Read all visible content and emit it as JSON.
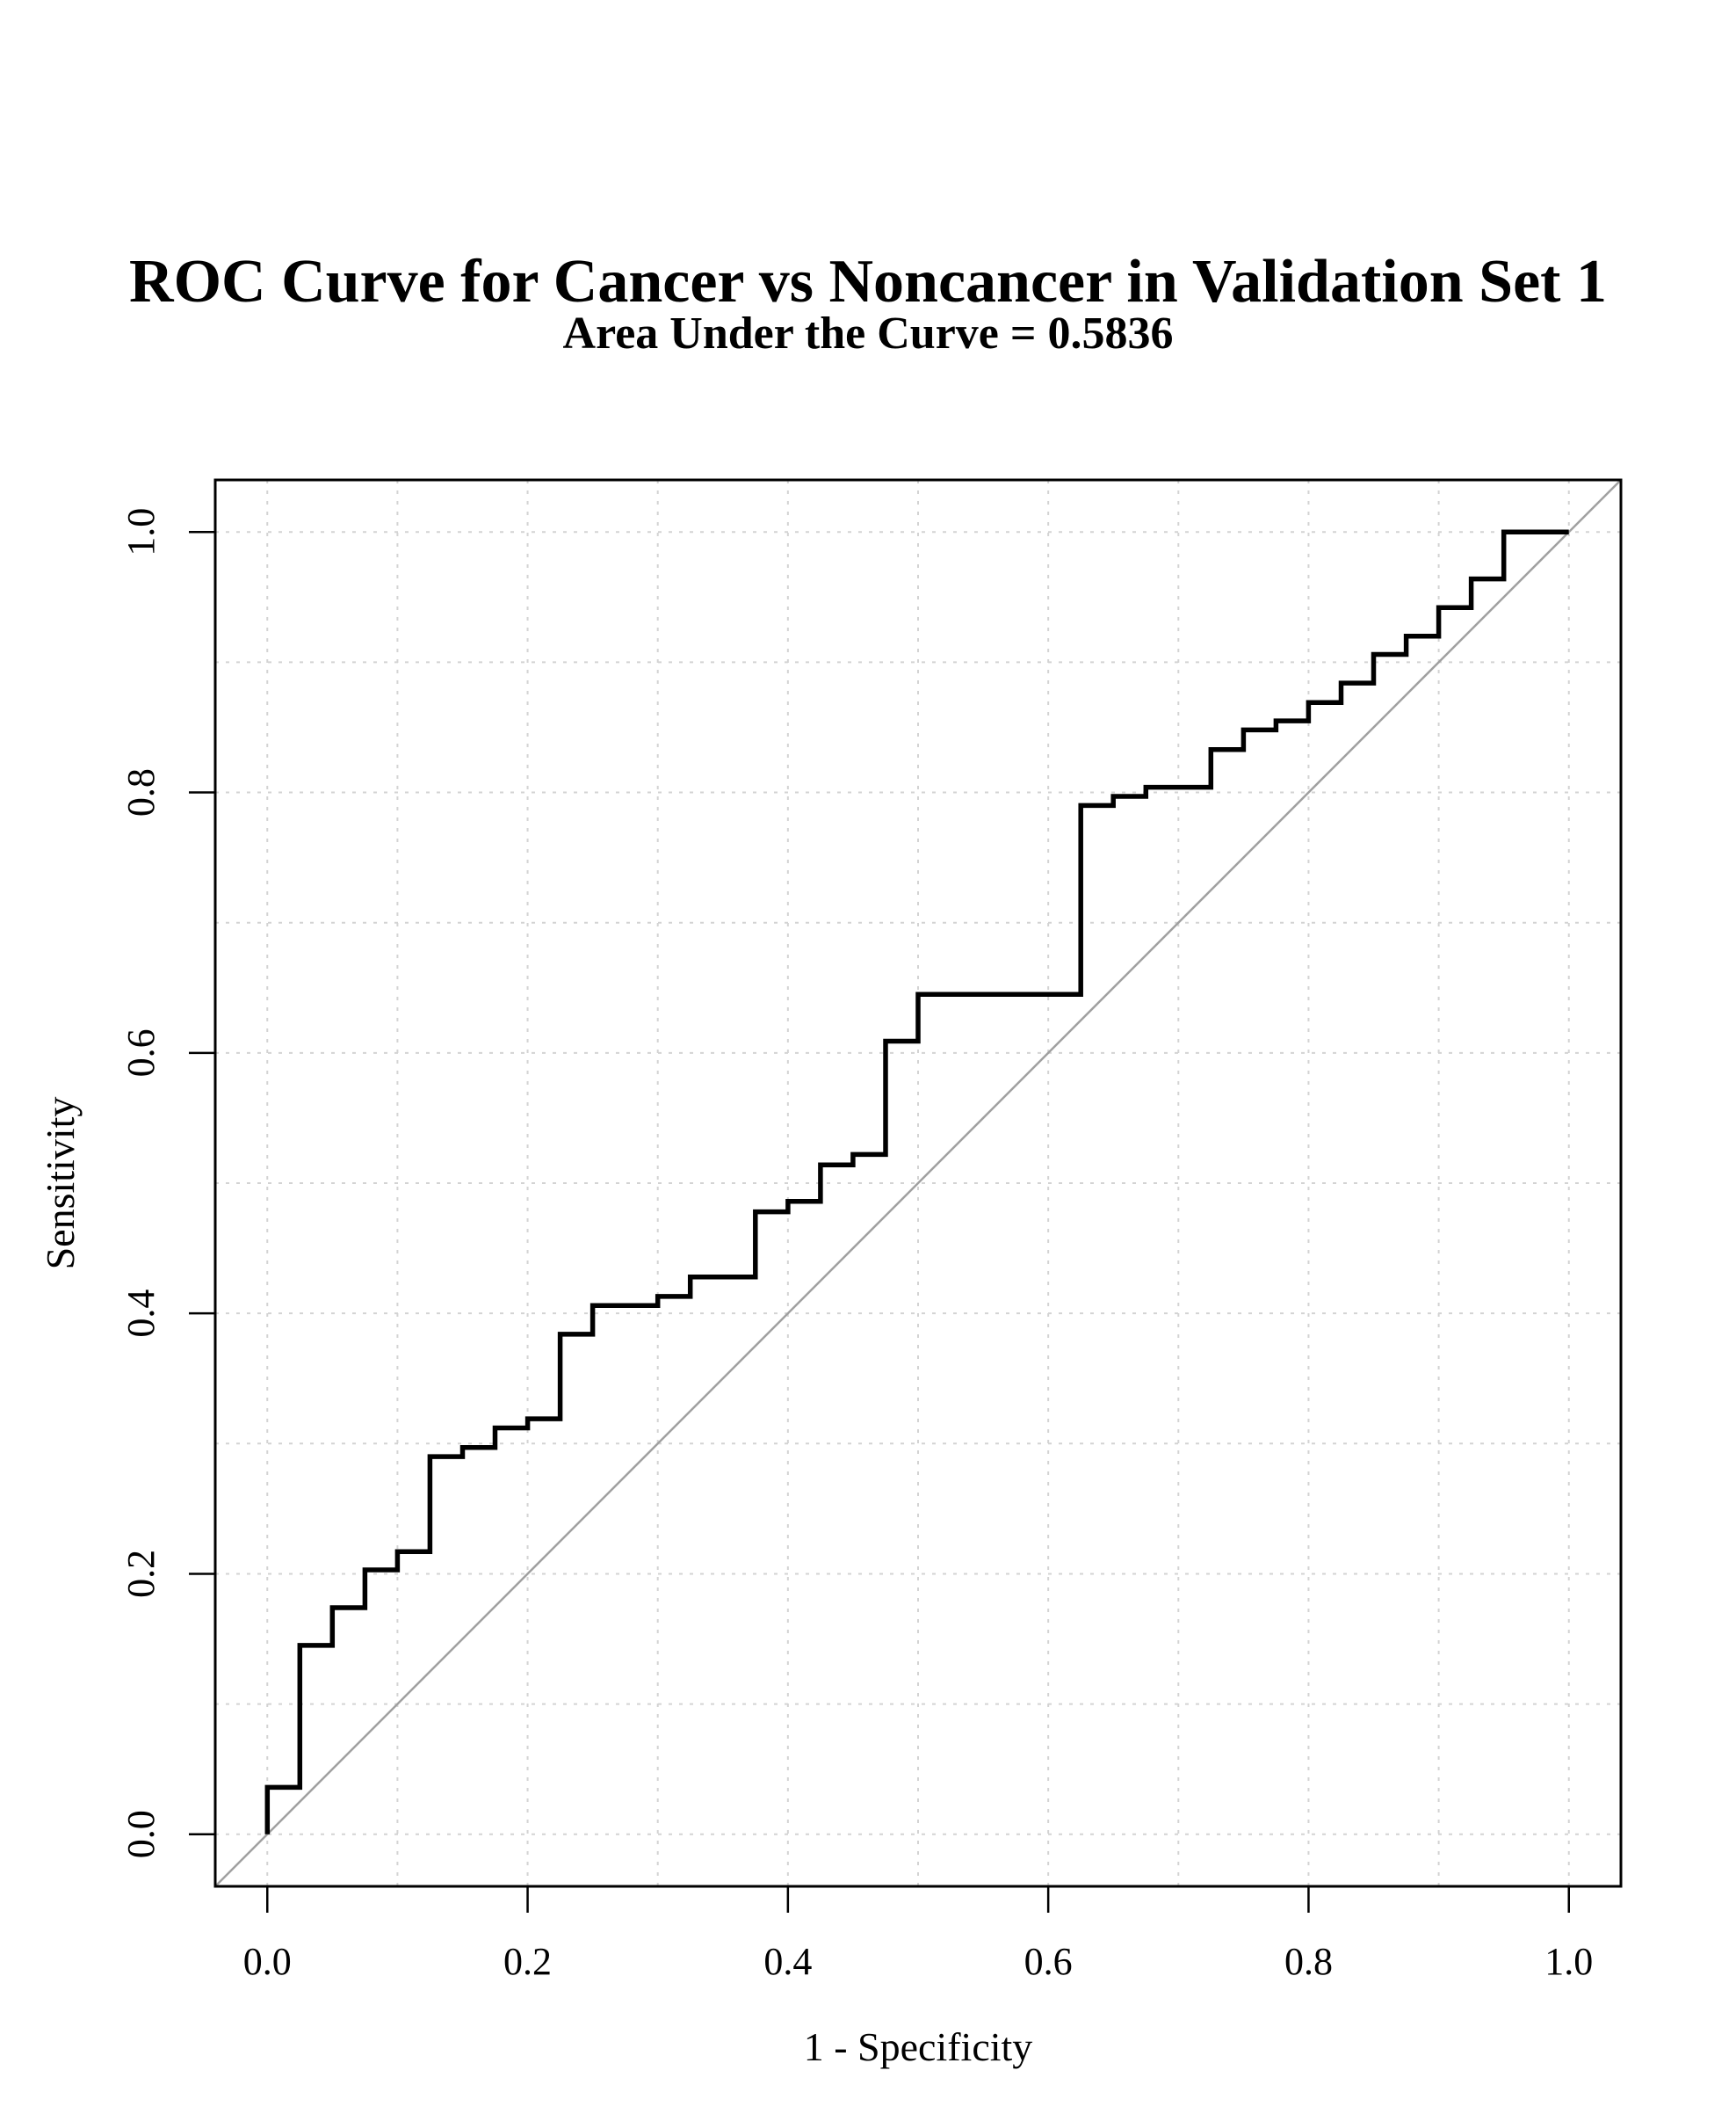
{
  "chart_data": {
    "type": "line",
    "title": "ROC Curve for Cancer vs Noncancer in Validation Set 1",
    "subtitle": "Area Under the Curve =  0.5836",
    "xlabel": "1 - Specificity",
    "ylabel": "Sensitivity",
    "xlim": [
      0,
      1
    ],
    "ylim": [
      0,
      1
    ],
    "x_ticks": [
      "0.0",
      "0.2",
      "0.4",
      "0.6",
      "0.8",
      "1.0"
    ],
    "y_ticks": [
      "0.0",
      "0.2",
      "0.4",
      "0.6",
      "0.8",
      "1.0"
    ],
    "grid": true,
    "grid_style": "dotted",
    "reference_line": {
      "from": [
        0,
        0
      ],
      "to": [
        1,
        1
      ],
      "color": "#a0a0a0"
    },
    "series": [
      {
        "color": "#000000",
        "step": true,
        "points": [
          [
            0.0,
            0.0
          ],
          [
            0.0,
            0.036
          ],
          [
            0.025,
            0.036
          ],
          [
            0.025,
            0.145
          ],
          [
            0.05,
            0.145
          ],
          [
            0.05,
            0.174
          ],
          [
            0.075,
            0.174
          ],
          [
            0.075,
            0.203
          ],
          [
            0.1,
            0.203
          ],
          [
            0.1,
            0.217
          ],
          [
            0.125,
            0.217
          ],
          [
            0.125,
            0.29
          ],
          [
            0.15,
            0.29
          ],
          [
            0.15,
            0.297
          ],
          [
            0.175,
            0.297
          ],
          [
            0.175,
            0.312
          ],
          [
            0.2,
            0.312
          ],
          [
            0.2,
            0.319
          ],
          [
            0.225,
            0.319
          ],
          [
            0.225,
            0.384
          ],
          [
            0.25,
            0.384
          ],
          [
            0.25,
            0.406
          ],
          [
            0.3,
            0.406
          ],
          [
            0.3,
            0.413
          ],
          [
            0.325,
            0.413
          ],
          [
            0.325,
            0.428
          ],
          [
            0.375,
            0.428
          ],
          [
            0.375,
            0.478
          ],
          [
            0.4,
            0.478
          ],
          [
            0.4,
            0.486
          ],
          [
            0.425,
            0.486
          ],
          [
            0.425,
            0.514
          ],
          [
            0.45,
            0.514
          ],
          [
            0.45,
            0.522
          ],
          [
            0.475,
            0.522
          ],
          [
            0.475,
            0.609
          ],
          [
            0.5,
            0.609
          ],
          [
            0.5,
            0.645
          ],
          [
            0.625,
            0.645
          ],
          [
            0.625,
            0.79
          ],
          [
            0.65,
            0.79
          ],
          [
            0.65,
            0.797
          ],
          [
            0.675,
            0.797
          ],
          [
            0.675,
            0.804
          ],
          [
            0.725,
            0.804
          ],
          [
            0.725,
            0.833
          ],
          [
            0.75,
            0.833
          ],
          [
            0.75,
            0.848
          ],
          [
            0.775,
            0.848
          ],
          [
            0.775,
            0.855
          ],
          [
            0.8,
            0.855
          ],
          [
            0.8,
            0.869
          ],
          [
            0.825,
            0.869
          ],
          [
            0.825,
            0.884
          ],
          [
            0.85,
            0.884
          ],
          [
            0.85,
            0.906
          ],
          [
            0.875,
            0.906
          ],
          [
            0.875,
            0.92
          ],
          [
            0.9,
            0.92
          ],
          [
            0.9,
            0.942
          ],
          [
            0.925,
            0.942
          ],
          [
            0.925,
            0.964
          ],
          [
            0.95,
            0.964
          ],
          [
            0.95,
            1.0
          ],
          [
            0.975,
            1.0
          ],
          [
            1.0,
            1.0
          ]
        ]
      }
    ]
  }
}
